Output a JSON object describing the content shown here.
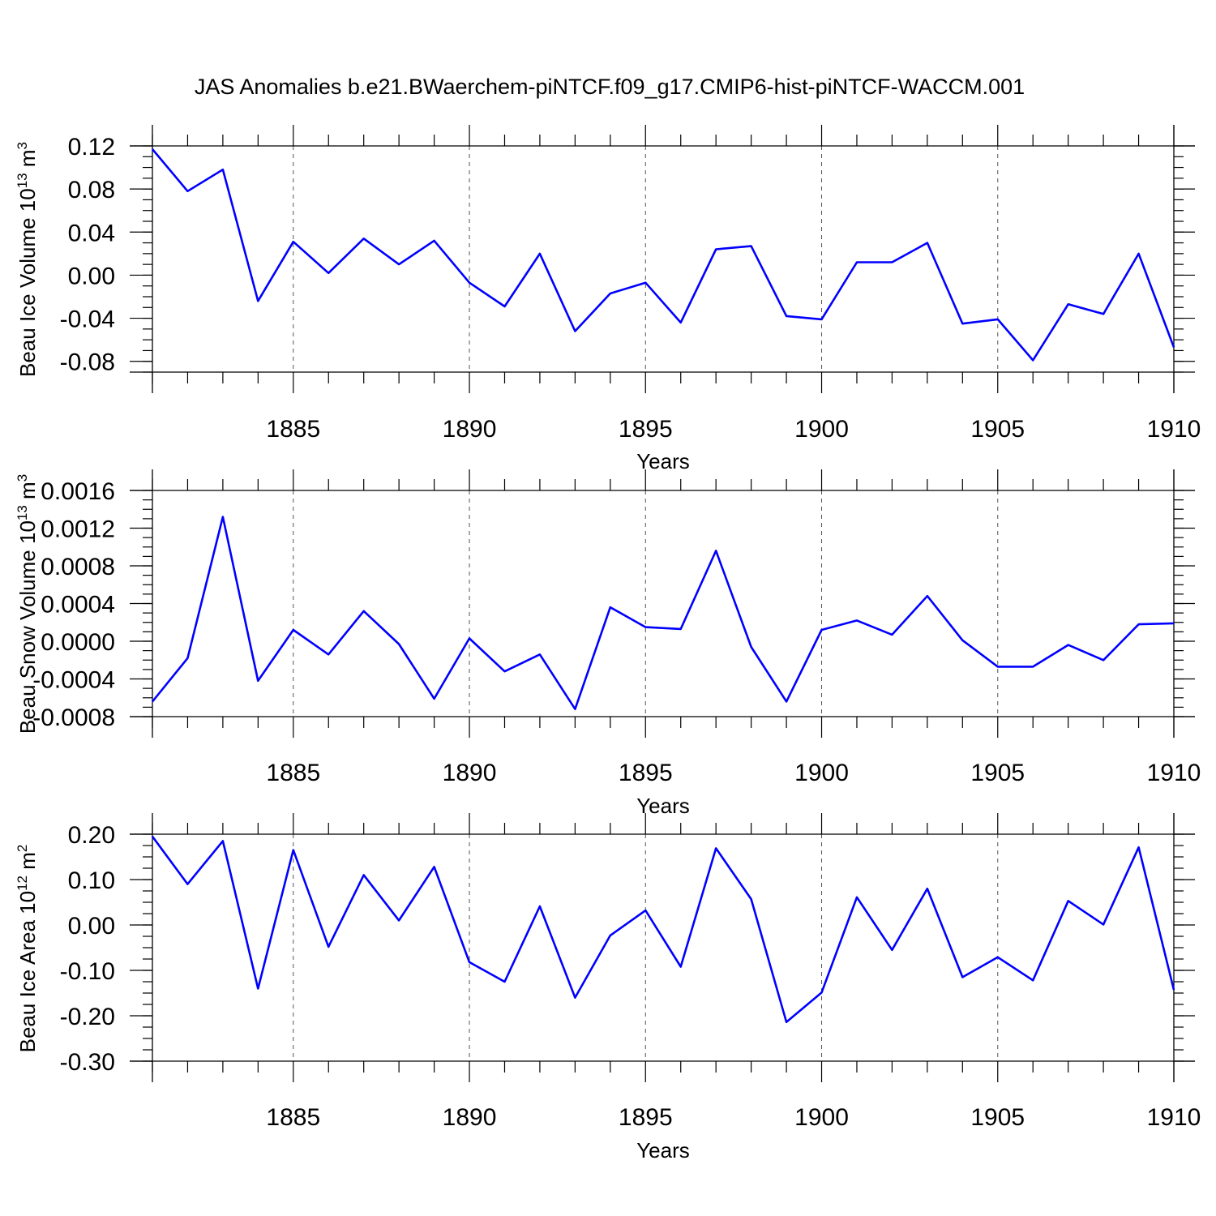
{
  "colors": {
    "line": "#0000ff",
    "axes": "#000000",
    "grid": "#555555"
  },
  "chart_data": [
    {
      "type": "line",
      "title": "JAS Anomalies b.e21.BWaerchem-piNTCF.f09_g17.CMIP6-hist-piNTCF-WACCM.001",
      "ylabel_main": "Beau Ice Volume 10",
      "ylabel_exp": "13",
      "ylabel_unit": " m",
      "ylabel_unit_exp": "3",
      "xlabel": "Years",
      "xlim": [
        1881,
        1910
      ],
      "ylim": [
        -0.09,
        0.12
      ],
      "xticks": [
        "1885",
        "1890",
        "1895",
        "1900",
        "1905",
        "1910"
      ],
      "yticks": [
        "0.12",
        "0.08",
        "0.04",
        "0.00",
        "-0.04",
        "-0.08"
      ],
      "x": [
        1881,
        1882,
        1883,
        1884,
        1885,
        1886,
        1887,
        1888,
        1889,
        1890,
        1891,
        1892,
        1893,
        1894,
        1895,
        1896,
        1897,
        1898,
        1899,
        1900,
        1901,
        1902,
        1903,
        1904,
        1905,
        1906,
        1907,
        1908,
        1909,
        1910
      ],
      "values": [
        0.117,
        0.078,
        0.098,
        -0.024,
        0.031,
        0.002,
        0.034,
        0.01,
        0.032,
        -0.007,
        -0.029,
        0.02,
        -0.052,
        -0.017,
        -0.007,
        -0.044,
        0.024,
        0.027,
        -0.038,
        -0.041,
        0.012,
        0.012,
        0.03,
        -0.045,
        -0.041,
        -0.079,
        -0.027,
        -0.036,
        0.02,
        -0.067
      ]
    },
    {
      "type": "line",
      "title": "",
      "ylabel_main": "Beau Snow Volume 10",
      "ylabel_exp": "13",
      "ylabel_unit": " m",
      "ylabel_unit_exp": "3",
      "xlabel": "Years",
      "xlim": [
        1881,
        1910
      ],
      "ylim": [
        -0.0008,
        0.0016
      ],
      "xticks": [
        "1885",
        "1890",
        "1895",
        "1900",
        "1905",
        "1910"
      ],
      "yticks": [
        "0.0016",
        "0.0012",
        "0.0008",
        "0.0004",
        "0.0000",
        "-0.0004",
        "-0.0008"
      ],
      "x": [
        1881,
        1882,
        1883,
        1884,
        1885,
        1886,
        1887,
        1888,
        1889,
        1890,
        1891,
        1892,
        1893,
        1894,
        1895,
        1896,
        1897,
        1898,
        1899,
        1900,
        1901,
        1902,
        1903,
        1904,
        1905,
        1906,
        1907,
        1908,
        1909,
        1910
      ],
      "values": [
        -0.00064,
        -0.00018,
        0.00132,
        -0.00042,
        0.00012,
        -0.00014,
        0.00032,
        -3e-05,
        -0.00061,
        3e-05,
        -0.00032,
        -0.00014,
        -0.00072,
        0.00036,
        0.00015,
        0.00013,
        0.00096,
        -6e-05,
        -0.00064,
        0.00012,
        0.00022,
        7e-05,
        0.00048,
        1e-05,
        -0.00027,
        -0.00027,
        -4e-05,
        -0.0002,
        0.00018,
        0.00019
      ]
    },
    {
      "type": "line",
      "title": "",
      "ylabel_main": "Beau Ice Area 10",
      "ylabel_exp": "12",
      "ylabel_unit": " m",
      "ylabel_unit_exp": "2",
      "xlabel": "Years",
      "xlim": [
        1881,
        1910
      ],
      "ylim": [
        -0.3,
        0.2
      ],
      "xticks": [
        "1885",
        "1890",
        "1895",
        "1900",
        "1905",
        "1910"
      ],
      "yticks": [
        "0.20",
        "0.10",
        "0.00",
        "-0.10",
        "-0.20",
        "-0.30"
      ],
      "x": [
        1881,
        1882,
        1883,
        1884,
        1885,
        1886,
        1887,
        1888,
        1889,
        1890,
        1891,
        1892,
        1893,
        1894,
        1895,
        1896,
        1897,
        1898,
        1899,
        1900,
        1901,
        1902,
        1903,
        1904,
        1905,
        1906,
        1907,
        1908,
        1909,
        1910
      ],
      "values": [
        0.195,
        0.09,
        0.185,
        -0.14,
        0.165,
        -0.048,
        0.11,
        0.01,
        0.128,
        -0.082,
        -0.125,
        0.041,
        -0.16,
        -0.023,
        0.032,
        -0.092,
        0.169,
        0.057,
        -0.214,
        -0.149,
        0.061,
        -0.055,
        0.08,
        -0.115,
        -0.071,
        -0.122,
        0.053,
        0.001,
        0.171,
        -0.143
      ]
    }
  ]
}
